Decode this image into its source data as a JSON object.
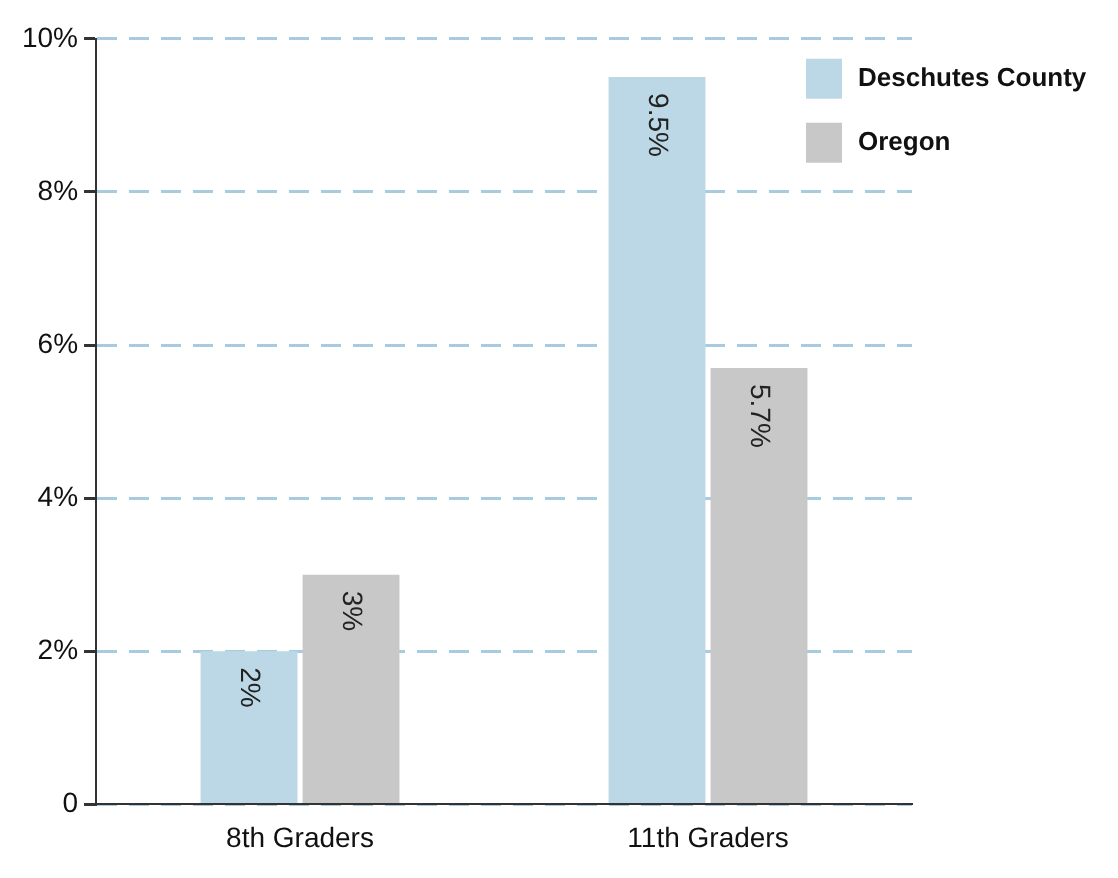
{
  "chart_data": {
    "type": "bar",
    "categories": [
      "8th Graders",
      "11th Graders"
    ],
    "series": [
      {
        "name": "Deschutes County",
        "color": "#bcd8e6",
        "values": [
          2,
          9.5
        ],
        "value_labels": [
          "2%",
          "9.5%"
        ]
      },
      {
        "name": "Oregon",
        "color": "#c8c8c9",
        "values": [
          3,
          5.7
        ],
        "value_labels": [
          "3%",
          "5.7%"
        ]
      }
    ],
    "ylim": [
      0,
      10
    ],
    "yticks": [
      0,
      {
        "value": 2,
        "label": "2%"
      },
      {
        "value": 4,
        "label": "4%"
      },
      {
        "value": 6,
        "label": "6%"
      },
      {
        "value": 8,
        "label": "8%"
      },
      {
        "value": 10,
        "label": "10%"
      }
    ],
    "grid": "y",
    "legend": "top right"
  }
}
